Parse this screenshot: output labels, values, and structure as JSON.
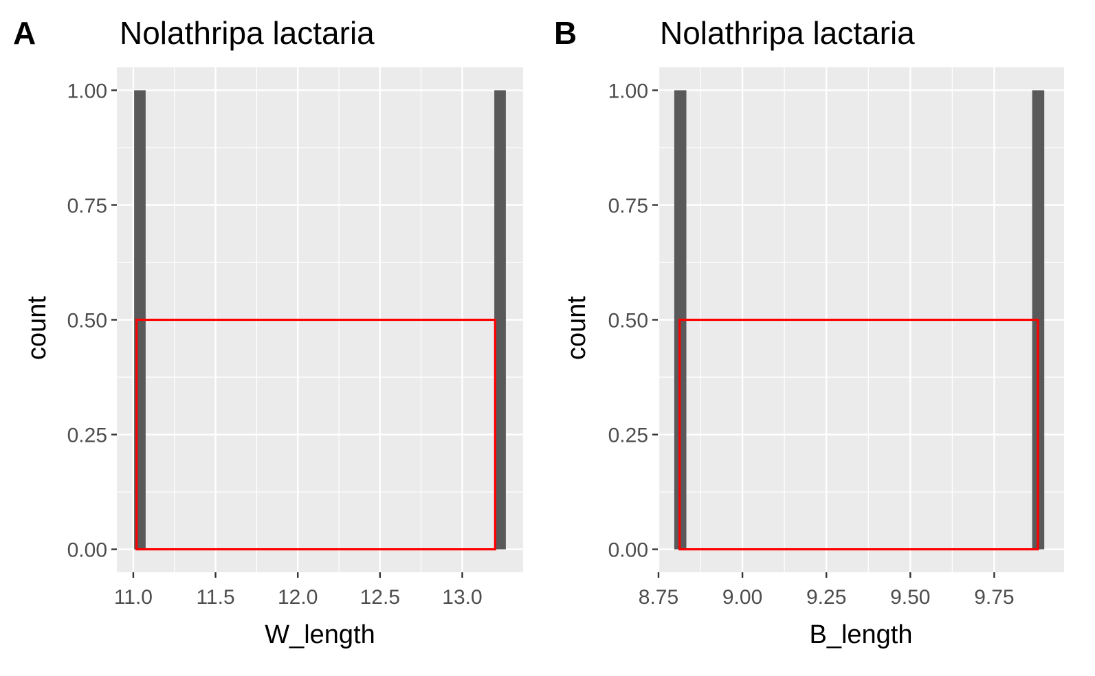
{
  "chart_data": [
    {
      "type": "bar",
      "panel_label": "A",
      "title": "Nolathripa lactaria",
      "xlabel": "W_length",
      "ylabel": "count",
      "xlim": [
        10.9,
        13.37
      ],
      "ylim": [
        -0.05,
        1.05
      ],
      "x_ticks": [
        11.0,
        11.5,
        12.0,
        12.5,
        13.0
      ],
      "x_tick_labels": [
        "11.0",
        "11.5",
        "12.0",
        "12.5",
        "13.0"
      ],
      "y_ticks": [
        0,
        0.25,
        0.5,
        0.75,
        1.0
      ],
      "y_tick_labels": [
        "0.00",
        "0.25",
        "0.50",
        "0.75",
        "1.00"
      ],
      "bars": [
        {
          "x": 11.04,
          "width": 0.07,
          "count": 1
        },
        {
          "x": 13.23,
          "width": 0.07,
          "count": 1
        }
      ],
      "bar_color": "#595959",
      "highlight_box": {
        "x0": 11.02,
        "x1": 13.2,
        "y0": 0,
        "y1": 0.5,
        "color": "#ff0000"
      },
      "panel_background": "#ebebeb",
      "grid": true
    },
    {
      "type": "bar",
      "panel_label": "B",
      "title": "Nolathripa lactaria",
      "xlabel": "B_length",
      "ylabel": "count",
      "xlim": [
        8.748,
        9.958
      ],
      "ylim": [
        -0.05,
        1.05
      ],
      "x_ticks": [
        8.75,
        9.0,
        9.25,
        9.5,
        9.75
      ],
      "x_tick_labels": [
        "8.75",
        "9.00",
        "9.25",
        "9.50",
        "9.75"
      ],
      "y_ticks": [
        0,
        0.25,
        0.5,
        0.75,
        1.0
      ],
      "y_tick_labels": [
        "0.00",
        "0.25",
        "0.50",
        "0.75",
        "1.00"
      ],
      "bars": [
        {
          "x": 8.815,
          "width": 0.036,
          "count": 1
        },
        {
          "x": 9.881,
          "width": 0.036,
          "count": 1
        }
      ],
      "bar_color": "#595959",
      "highlight_box": {
        "x0": 8.813,
        "x1": 9.88,
        "y0": 0,
        "y1": 0.5,
        "color": "#ff0000"
      },
      "panel_background": "#ebebeb",
      "grid": true
    }
  ]
}
